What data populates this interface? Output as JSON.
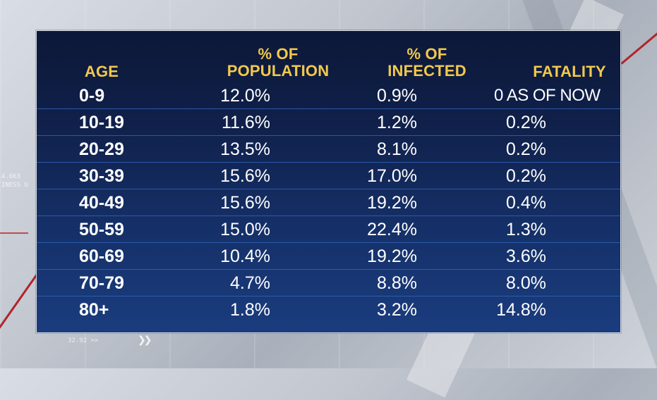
{
  "headers": {
    "age": "AGE",
    "population_line1": "% OF",
    "population_line2": "POPULATION",
    "infected_line1": "% OF",
    "infected_line2": "INFECTED",
    "fatality": "FATALITY"
  },
  "rows": [
    {
      "age": "0-9",
      "population": "12.0%",
      "infected": "0.9%",
      "fatality": "0 AS OF NOW"
    },
    {
      "age": "10-19",
      "population": "11.6%",
      "infected": "1.2%",
      "fatality": "0.2%"
    },
    {
      "age": "20-29",
      "population": "13.5%",
      "infected": "8.1%",
      "fatality": "0.2%"
    },
    {
      "age": "30-39",
      "population": "15.6%",
      "infected": "17.0%",
      "fatality": "0.2%"
    },
    {
      "age": "40-49",
      "population": "15.6%",
      "infected": "19.2%",
      "fatality": "0.4%"
    },
    {
      "age": "50-59",
      "population": "15.0%",
      "infected": "22.4%",
      "fatality": "1.3%"
    },
    {
      "age": "60-69",
      "population": "10.4%",
      "infected": "19.2%",
      "fatality": "3.6%"
    },
    {
      "age": "70-79",
      "population": "4.7%",
      "infected": "8.8%",
      "fatality": "8.0%"
    },
    {
      "age": "80+",
      "population": "1.8%",
      "infected": "3.2%",
      "fatality": "14.8%"
    }
  ],
  "background_text": {
    "ticker_a": "4.663",
    "ticker_b": "INESS U",
    "ticker_c": "32.92 >>"
  },
  "colors": {
    "header_text": "#f2c94c",
    "body_text": "#ffffff",
    "panel_top": "#0c1838",
    "panel_bottom": "#1a3c7e",
    "row_separator": "#2f63b6"
  }
}
